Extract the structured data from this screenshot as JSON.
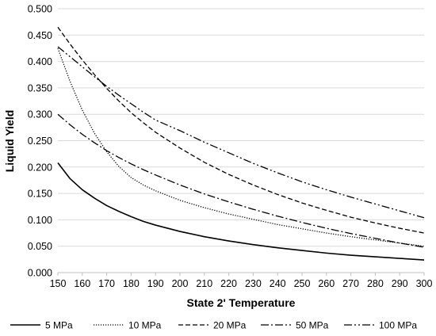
{
  "chart_data": {
    "type": "line",
    "xlabel": "State 2' Temperature",
    "ylabel": "Liquid Yield",
    "xlim": [
      150,
      300
    ],
    "ylim": [
      0.0,
      0.5
    ],
    "x_ticks": [
      150,
      160,
      170,
      180,
      190,
      200,
      210,
      220,
      230,
      240,
      250,
      260,
      270,
      280,
      290,
      300
    ],
    "y_ticks": [
      "0.000",
      "0.050",
      "0.100",
      "0.150",
      "0.200",
      "0.250",
      "0.300",
      "0.350",
      "0.400",
      "0.450",
      "0.500"
    ],
    "grid": "horizontal",
    "legend_position": "bottom",
    "x": [
      150,
      155,
      160,
      165,
      170,
      175,
      180,
      185,
      190,
      200,
      210,
      220,
      230,
      240,
      250,
      260,
      270,
      280,
      290,
      300
    ],
    "series": [
      {
        "name": "5 MPa",
        "dash": "solid",
        "values": [
          0.208,
          0.178,
          0.157,
          0.141,
          0.127,
          0.116,
          0.106,
          0.097,
          0.09,
          0.078,
          0.068,
          0.06,
          0.053,
          0.047,
          0.042,
          0.037,
          0.033,
          0.03,
          0.027,
          0.024
        ]
      },
      {
        "name": "10 MPa",
        "dash": "dotted",
        "values": [
          0.425,
          0.362,
          0.308,
          0.264,
          0.229,
          0.201,
          0.18,
          0.166,
          0.155,
          0.137,
          0.123,
          0.111,
          0.101,
          0.091,
          0.083,
          0.075,
          0.068,
          0.062,
          0.056,
          0.05
        ]
      },
      {
        "name": "20 MPa",
        "dash": "dashed",
        "values": [
          0.465,
          0.433,
          0.403,
          0.375,
          0.349,
          0.325,
          0.303,
          0.284,
          0.266,
          0.236,
          0.209,
          0.186,
          0.166,
          0.148,
          0.132,
          0.118,
          0.105,
          0.094,
          0.084,
          0.075
        ]
      },
      {
        "name": "50 MPa",
        "dash": "dash-dot",
        "values": [
          0.3,
          0.28,
          0.262,
          0.246,
          0.231,
          0.218,
          0.206,
          0.195,
          0.185,
          0.166,
          0.149,
          0.134,
          0.12,
          0.107,
          0.095,
          0.084,
          0.074,
          0.065,
          0.056,
          0.048
        ]
      },
      {
        "name": "100 MPa",
        "dash": "dash-dot-dot",
        "values": [
          0.428,
          0.409,
          0.39,
          0.371,
          0.353,
          0.336,
          0.32,
          0.304,
          0.289,
          0.269,
          0.247,
          0.227,
          0.207,
          0.189,
          0.172,
          0.157,
          0.143,
          0.13,
          0.117,
          0.104
        ]
      }
    ]
  },
  "colors": {
    "series": "#000000",
    "gridline": "#d9d9d9",
    "axis": "#bfbfbf",
    "background": "#ffffff"
  }
}
